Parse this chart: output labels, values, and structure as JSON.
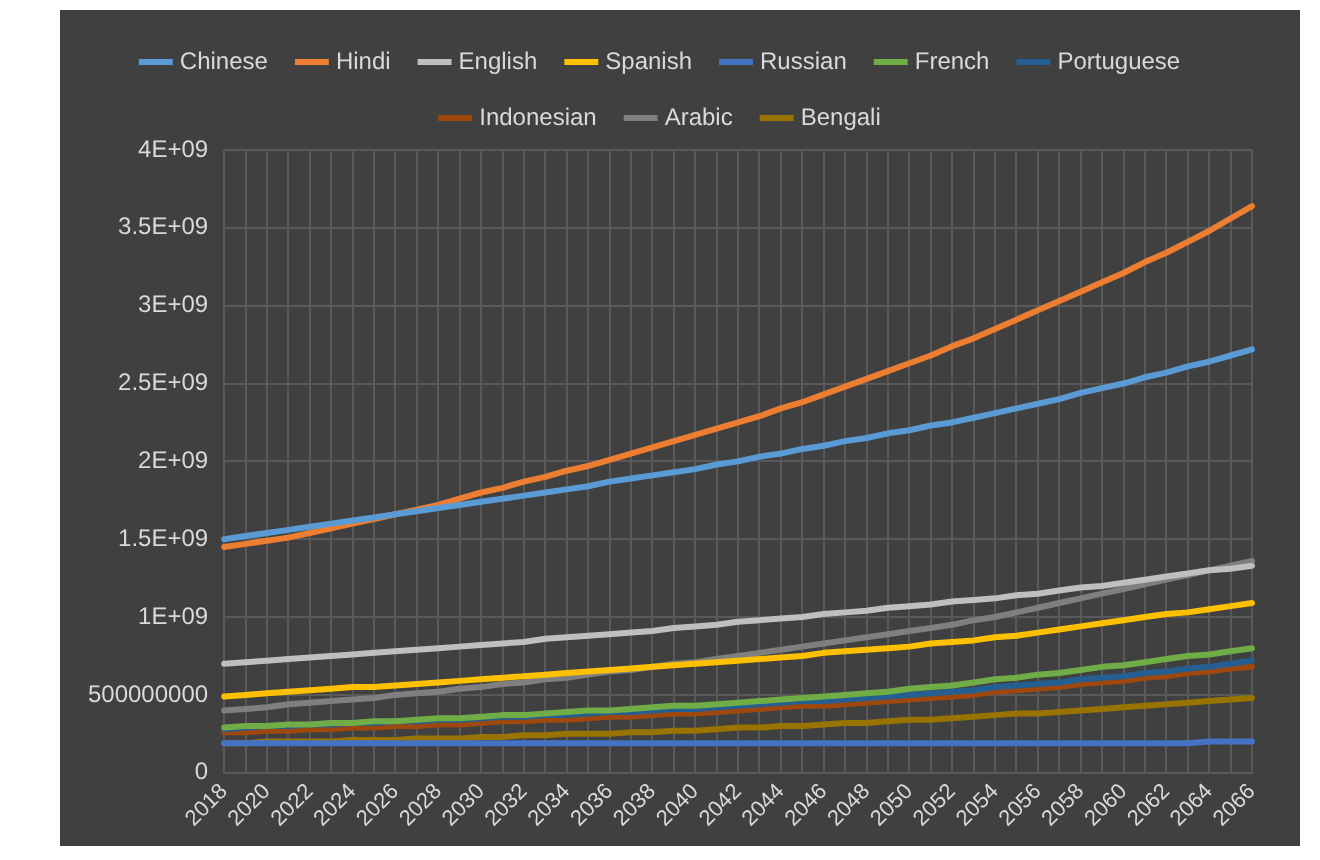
{
  "chart_data": {
    "type": "line",
    "categories": [
      "2018",
      null,
      "2020",
      null,
      "2022",
      null,
      "2024",
      null,
      "2026",
      null,
      "2028",
      null,
      "2030",
      null,
      "2032",
      null,
      "2034",
      null,
      "2036",
      null,
      "2038",
      null,
      "2040",
      null,
      "2042",
      null,
      "2044",
      null,
      "2046",
      null,
      "2048",
      null,
      "2050",
      null,
      "2052",
      null,
      "2054",
      null,
      "2056",
      null,
      "2058",
      null,
      "2060",
      null,
      "2062",
      null,
      "2064",
      null,
      "2066"
    ],
    "series": [
      {
        "name": "Chinese",
        "color": "#5b9bd5",
        "values": [
          1500000000.0,
          1520000000.0,
          1540000000.0,
          1560000000.0,
          1580000000.0,
          1600000000.0,
          1620000000.0,
          1640000000.0,
          1660000000.0,
          1680000000.0,
          1700000000.0,
          1720000000.0,
          1740000000.0,
          1760000000.0,
          1780000000.0,
          1800000000.0,
          1820000000.0,
          1840000000.0,
          1870000000.0,
          1890000000.0,
          1910000000.0,
          1930000000.0,
          1950000000.0,
          1980000000.0,
          2000000000.0,
          2030000000.0,
          2050000000.0,
          2080000000.0,
          2100000000.0,
          2130000000.0,
          2150000000.0,
          2180000000.0,
          2200000000.0,
          2230000000.0,
          2250000000.0,
          2280000000.0,
          2310000000.0,
          2340000000.0,
          2370000000.0,
          2400000000.0,
          2440000000.0,
          2470000000.0,
          2500000000.0,
          2540000000.0,
          2570000000.0,
          2610000000.0,
          2640000000.0,
          2680000000.0,
          2720000000.0
        ]
      },
      {
        "name": "Hindi",
        "color": "#ed7d31",
        "values": [
          1450000000.0,
          1470000000.0,
          1490000000.0,
          1510000000.0,
          1540000000.0,
          1570000000.0,
          1600000000.0,
          1630000000.0,
          1660000000.0,
          1690000000.0,
          1720000000.0,
          1760000000.0,
          1800000000.0,
          1830000000.0,
          1870000000.0,
          1900000000.0,
          1940000000.0,
          1970000000.0,
          2010000000.0,
          2050000000.0,
          2090000000.0,
          2130000000.0,
          2170000000.0,
          2210000000.0,
          2250000000.0,
          2290000000.0,
          2340000000.0,
          2380000000.0,
          2430000000.0,
          2480000000.0,
          2530000000.0,
          2580000000.0,
          2630000000.0,
          2680000000.0,
          2740000000.0,
          2790000000.0,
          2850000000.0,
          2910000000.0,
          2970000000.0,
          3030000000.0,
          3090000000.0,
          3150000000.0,
          3210000000.0,
          3280000000.0,
          3340000000.0,
          3410000000.0,
          3480000000.0,
          3560000000.0,
          3640000000.0
        ]
      },
      {
        "name": "English",
        "color": "#bfbfbf",
        "values": [
          700000000.0,
          710000000.0,
          720000000.0,
          730000000.0,
          740000000.0,
          750000000.0,
          760000000.0,
          770000000.0,
          780000000.0,
          790000000.0,
          800000000.0,
          810000000.0,
          820000000.0,
          830000000.0,
          840000000.0,
          860000000.0,
          870000000.0,
          880000000.0,
          890000000.0,
          900000000.0,
          910000000.0,
          930000000.0,
          940000000.0,
          950000000.0,
          970000000.0,
          980000000.0,
          990000000.0,
          1000000000.0,
          1020000000.0,
          1030000000.0,
          1040000000.0,
          1060000000.0,
          1070000000.0,
          1080000000.0,
          1100000000.0,
          1110000000.0,
          1120000000.0,
          1140000000.0,
          1150000000.0,
          1170000000.0,
          1190000000.0,
          1200000000.0,
          1220000000.0,
          1240000000.0,
          1260000000.0,
          1280000000.0,
          1300000000.0,
          1310000000.0,
          1330000000.0
        ]
      },
      {
        "name": "Spanish",
        "color": "#ffc000",
        "values": [
          490000000.0,
          500000000.0,
          510000000.0,
          520000000.0,
          530000000.0,
          540000000.0,
          550000000.0,
          550000000.0,
          560000000.0,
          570000000.0,
          580000000.0,
          590000000.0,
          600000000.0,
          610000000.0,
          620000000.0,
          630000000.0,
          640000000.0,
          650000000.0,
          660000000.0,
          670000000.0,
          680000000.0,
          690000000.0,
          700000000.0,
          710000000.0,
          720000000.0,
          730000000.0,
          740000000.0,
          750000000.0,
          770000000.0,
          780000000.0,
          790000000.0,
          800000000.0,
          810000000.0,
          830000000.0,
          840000000.0,
          850000000.0,
          870000000.0,
          880000000.0,
          900000000.0,
          920000000.0,
          940000000.0,
          960000000.0,
          980000000.0,
          1000000000.0,
          1020000000.0,
          1030000000.0,
          1050000000.0,
          1070000000.0,
          1090000000.0
        ]
      },
      {
        "name": "Russian",
        "color": "#4472c4",
        "values": [
          190000000.0,
          190000000.0,
          190000000.0,
          190000000.0,
          190000000.0,
          190000000.0,
          190000000.0,
          190000000.0,
          190000000.0,
          190000000.0,
          190000000.0,
          190000000.0,
          190000000.0,
          190000000.0,
          190000000.0,
          190000000.0,
          190000000.0,
          190000000.0,
          190000000.0,
          190000000.0,
          190000000.0,
          190000000.0,
          190000000.0,
          190000000.0,
          190000000.0,
          190000000.0,
          190000000.0,
          190000000.0,
          190000000.0,
          190000000.0,
          190000000.0,
          190000000.0,
          190000000.0,
          190000000.0,
          190000000.0,
          190000000.0,
          190000000.0,
          190000000.0,
          190000000.0,
          190000000.0,
          190000000.0,
          190000000.0,
          190000000.0,
          190000000.0,
          190000000.0,
          190000000.0,
          200000000.0,
          200000000.0,
          200000000.0
        ]
      },
      {
        "name": "French",
        "color": "#70ad47",
        "values": [
          290000000.0,
          300000000.0,
          300000000.0,
          310000000.0,
          310000000.0,
          320000000.0,
          320000000.0,
          330000000.0,
          330000000.0,
          340000000.0,
          350000000.0,
          350000000.0,
          360000000.0,
          370000000.0,
          370000000.0,
          380000000.0,
          390000000.0,
          400000000.0,
          400000000.0,
          410000000.0,
          420000000.0,
          430000000.0,
          430000000.0,
          440000000.0,
          450000000.0,
          460000000.0,
          470000000.0,
          480000000.0,
          490000000.0,
          500000000.0,
          510000000.0,
          520000000.0,
          540000000.0,
          550000000.0,
          560000000.0,
          580000000.0,
          600000000.0,
          610000000.0,
          630000000.0,
          640000000.0,
          660000000.0,
          680000000.0,
          690000000.0,
          710000000.0,
          730000000.0,
          750000000.0,
          760000000.0,
          780000000.0,
          800000000.0
        ]
      },
      {
        "name": "Portuguese",
        "color": "#255e91",
        "values": [
          280000000.0,
          290000000.0,
          300000000.0,
          300000000.0,
          310000000.0,
          310000000.0,
          320000000.0,
          320000000.0,
          330000000.0,
          330000000.0,
          340000000.0,
          340000000.0,
          350000000.0,
          360000000.0,
          360000000.0,
          370000000.0,
          370000000.0,
          380000000.0,
          390000000.0,
          390000000.0,
          400000000.0,
          410000000.0,
          410000000.0,
          420000000.0,
          430000000.0,
          440000000.0,
          450000000.0,
          460000000.0,
          460000000.0,
          470000000.0,
          480000000.0,
          490000000.0,
          500000000.0,
          510000000.0,
          520000000.0,
          530000000.0,
          550000000.0,
          560000000.0,
          570000000.0,
          580000000.0,
          600000000.0,
          610000000.0,
          620000000.0,
          640000000.0,
          650000000.0,
          670000000.0,
          680000000.0,
          700000000.0,
          720000000.0
        ]
      },
      {
        "name": "Indonesian",
        "color": "#9e480e",
        "values": [
          260000000.0,
          260000000.0,
          270000000.0,
          270000000.0,
          280000000.0,
          280000000.0,
          290000000.0,
          290000000.0,
          300000000.0,
          300000000.0,
          310000000.0,
          310000000.0,
          320000000.0,
          330000000.0,
          330000000.0,
          340000000.0,
          340000000.0,
          350000000.0,
          360000000.0,
          360000000.0,
          370000000.0,
          380000000.0,
          380000000.0,
          390000000.0,
          400000000.0,
          410000000.0,
          420000000.0,
          430000000.0,
          430000000.0,
          440000000.0,
          450000000.0,
          460000000.0,
          470000000.0,
          480000000.0,
          490000000.0,
          500000000.0,
          520000000.0,
          530000000.0,
          540000000.0,
          550000000.0,
          570000000.0,
          580000000.0,
          590000000.0,
          610000000.0,
          620000000.0,
          640000000.0,
          650000000.0,
          670000000.0,
          680000000.0
        ]
      },
      {
        "name": "Arabic",
        "color": "#7f7f7f",
        "values": [
          400000000.0,
          410000000.0,
          420000000.0,
          440000000.0,
          450000000.0,
          460000000.0,
          470000000.0,
          480000000.0,
          500000000.0,
          510000000.0,
          520000000.0,
          540000000.0,
          550000000.0,
          570000000.0,
          580000000.0,
          600000000.0,
          610000000.0,
          630000000.0,
          650000000.0,
          660000000.0,
          680000000.0,
          700000000.0,
          710000000.0,
          730000000.0,
          750000000.0,
          770000000.0,
          790000000.0,
          810000000.0,
          830000000.0,
          850000000.0,
          870000000.0,
          890000000.0,
          910000000.0,
          930000000.0,
          950000000.0,
          980000000.0,
          1000000000.0,
          1030000000.0,
          1060000000.0,
          1090000000.0,
          1120000000.0,
          1150000000.0,
          1180000000.0,
          1210000000.0,
          1240000000.0,
          1270000000.0,
          1300000000.0,
          1330000000.0,
          1360000000.0
        ]
      },
      {
        "name": "Bengali",
        "color": "#997300",
        "values": [
          190000000.0,
          190000000.0,
          200000000.0,
          200000000.0,
          200000000.0,
          200000000.0,
          210000000.0,
          210000000.0,
          210000000.0,
          220000000.0,
          220000000.0,
          220000000.0,
          230000000.0,
          230000000.0,
          240000000.0,
          240000000.0,
          250000000.0,
          250000000.0,
          250000000.0,
          260000000.0,
          260000000.0,
          270000000.0,
          270000000.0,
          280000000.0,
          290000000.0,
          290000000.0,
          300000000.0,
          300000000.0,
          310000000.0,
          320000000.0,
          320000000.0,
          330000000.0,
          340000000.0,
          340000000.0,
          350000000.0,
          360000000.0,
          370000000.0,
          380000000.0,
          380000000.0,
          390000000.0,
          400000000.0,
          410000000.0,
          420000000.0,
          430000000.0,
          440000000.0,
          450000000.0,
          460000000.0,
          470000000.0,
          480000000.0
        ]
      }
    ],
    "ylim": [
      0,
      4000000000.0
    ],
    "yticks": [
      0,
      {
        "value": 500000000.0,
        "label": "500000000"
      },
      {
        "value": 1000000000.0,
        "label": "1E+09"
      },
      {
        "value": 1500000000.0,
        "label": "1.5E+09"
      },
      {
        "value": 2000000000.0,
        "label": "2E+09"
      },
      {
        "value": 2500000000.0,
        "label": "2.5E+09"
      },
      {
        "value": 3000000000.0,
        "label": "3E+09"
      },
      {
        "value": 3500000000.0,
        "label": "3.5E+09"
      },
      {
        "value": 4000000000.0,
        "label": "4E+09"
      }
    ],
    "grid": true,
    "legend": "top",
    "marker": "none",
    "line_style": "solid"
  }
}
